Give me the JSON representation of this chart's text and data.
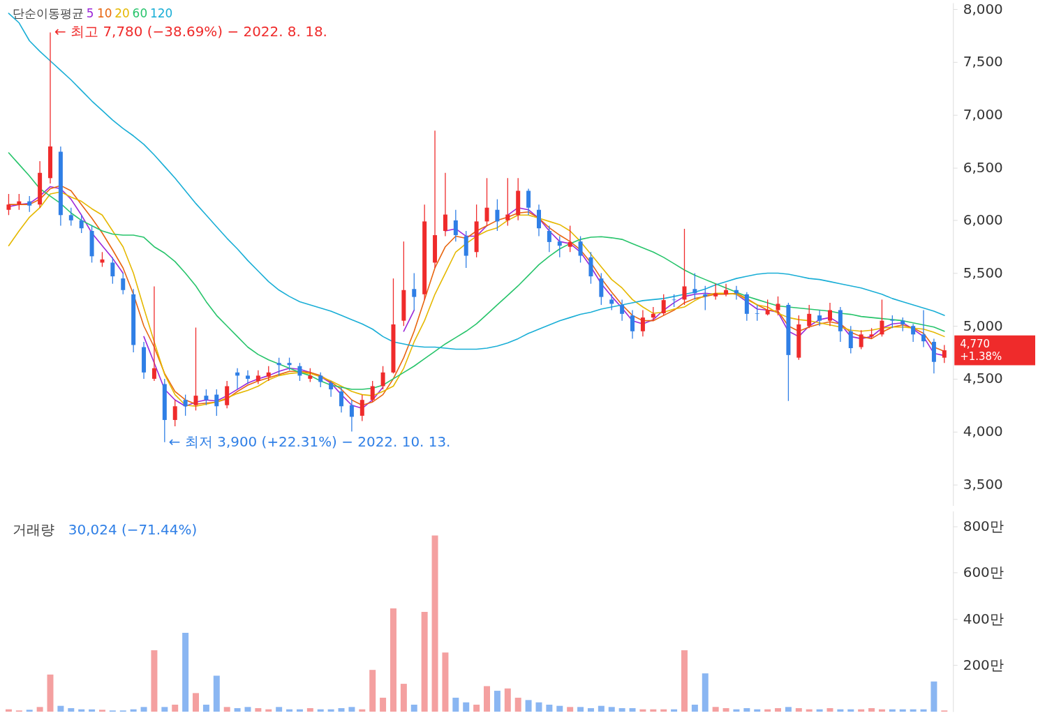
{
  "chart_data": [
    {
      "type": "candlestick",
      "legend_title": "단순이동평균",
      "legend": "top left",
      "grid": false,
      "tick_labels": "y",
      "categories": [
        null,
        null,
        null,
        null,
        null,
        null,
        null,
        null,
        null,
        null,
        null,
        null,
        null,
        null,
        null,
        null,
        null,
        null,
        null,
        null,
        null,
        null,
        null,
        null,
        null,
        null,
        null,
        null,
        null,
        null,
        null,
        null,
        null,
        null,
        null,
        null,
        null,
        null,
        null,
        null,
        null,
        null,
        null,
        null,
        null,
        null,
        null,
        null,
        null,
        null,
        null,
        null,
        null,
        null,
        null,
        null,
        null,
        null,
        null,
        null,
        null,
        null,
        null,
        null,
        null,
        null,
        null,
        null,
        null,
        null,
        null,
        null,
        null,
        null,
        null,
        null,
        null,
        null,
        null,
        null,
        null,
        null,
        null,
        null,
        null,
        null,
        null,
        null,
        null,
        null,
        null
      ],
      "ohlc": [
        [
          6100,
          6250,
          6050,
          6150
        ],
        [
          6150,
          6250,
          6100,
          6180
        ],
        [
          6180,
          6230,
          6080,
          6140
        ],
        [
          6150,
          6560,
          6120,
          6450
        ],
        [
          6400,
          7780,
          6350,
          6700
        ],
        [
          6650,
          6700,
          5950,
          6050
        ],
        [
          6050,
          6120,
          5950,
          6000
        ],
        [
          6000,
          6050,
          5880,
          5925
        ],
        [
          5900,
          5950,
          5600,
          5660
        ],
        [
          5600,
          5700,
          5560,
          5630
        ],
        [
          5600,
          5650,
          5400,
          5470
        ],
        [
          5450,
          5500,
          5300,
          5340
        ],
        [
          5300,
          5350,
          4750,
          4820
        ],
        [
          4800,
          4850,
          4500,
          4560
        ],
        [
          4500,
          5375,
          4480,
          4600
        ],
        [
          4450,
          4500,
          3900,
          4110
        ],
        [
          4110,
          4300,
          4050,
          4240
        ],
        [
          4300,
          4350,
          4150,
          4240
        ],
        [
          4250,
          4985,
          4200,
          4340
        ],
        [
          4340,
          4400,
          4250,
          4300
        ],
        [
          4350,
          4400,
          4150,
          4240
        ],
        [
          4250,
          4480,
          4220,
          4430
        ],
        [
          4560,
          4600,
          4400,
          4530
        ],
        [
          4530,
          4580,
          4450,
          4500
        ],
        [
          4480,
          4580,
          4450,
          4530
        ],
        [
          4520,
          4620,
          4480,
          4560
        ],
        [
          4650,
          4700,
          4530,
          4630
        ],
        [
          4650,
          4700,
          4580,
          4630
        ],
        [
          4620,
          4650,
          4480,
          4530
        ],
        [
          4500,
          4600,
          4470,
          4530
        ],
        [
          4530,
          4560,
          4420,
          4470
        ],
        [
          4460,
          4480,
          4330,
          4400
        ],
        [
          4380,
          4420,
          4180,
          4240
        ],
        [
          4250,
          4300,
          4000,
          4140
        ],
        [
          4150,
          4350,
          4100,
          4300
        ],
        [
          4300,
          4480,
          4280,
          4430
        ],
        [
          4430,
          4620,
          4400,
          4560
        ],
        [
          4560,
          5450,
          4550,
          5015
        ],
        [
          5050,
          5800,
          5000,
          5340
        ],
        [
          5350,
          5500,
          5150,
          5275
        ],
        [
          5300,
          6150,
          5250,
          5990
        ],
        [
          5600,
          6850,
          5550,
          5860
        ],
        [
          5900,
          6450,
          5850,
          6055
        ],
        [
          6000,
          6100,
          5800,
          5860
        ],
        [
          5850,
          5900,
          5550,
          5665
        ],
        [
          5700,
          6150,
          5650,
          5990
        ],
        [
          5990,
          6400,
          5950,
          6120
        ],
        [
          6100,
          6200,
          5900,
          5990
        ],
        [
          6000,
          6400,
          5950,
          6055
        ],
        [
          6050,
          6400,
          6000,
          6280
        ],
        [
          6280,
          6300,
          6050,
          6120
        ],
        [
          6100,
          6150,
          5850,
          5925
        ],
        [
          5900,
          5950,
          5700,
          5795
        ],
        [
          5800,
          5850,
          5650,
          5760
        ],
        [
          5750,
          5950,
          5700,
          5795
        ],
        [
          5800,
          5850,
          5600,
          5665
        ],
        [
          5650,
          5700,
          5400,
          5470
        ],
        [
          5450,
          5500,
          5200,
          5275
        ],
        [
          5250,
          5300,
          5150,
          5210
        ],
        [
          5200,
          5250,
          5050,
          5115
        ],
        [
          5100,
          5150,
          4880,
          4950
        ],
        [
          4950,
          5150,
          4900,
          5080
        ],
        [
          5080,
          5180,
          5050,
          5115
        ],
        [
          5120,
          5300,
          5100,
          5245
        ],
        [
          5250,
          5300,
          5180,
          5245
        ],
        [
          5250,
          5920,
          5200,
          5375
        ],
        [
          5350,
          5500,
          5250,
          5310
        ],
        [
          5300,
          5380,
          5150,
          5280
        ],
        [
          5280,
          5400,
          5250,
          5310
        ],
        [
          5300,
          5400,
          5280,
          5340
        ],
        [
          5340,
          5380,
          5250,
          5310
        ],
        [
          5300,
          5320,
          5050,
          5115
        ],
        [
          5120,
          5200,
          5050,
          5115
        ],
        [
          5110,
          5250,
          5100,
          5150
        ],
        [
          5150,
          5280,
          5100,
          5210
        ],
        [
          5200,
          5220,
          4290,
          4725
        ],
        [
          4700,
          5100,
          4680,
          5015
        ],
        [
          5000,
          5200,
          4980,
          5115
        ],
        [
          5100,
          5150,
          5000,
          5050
        ],
        [
          5050,
          5220,
          5000,
          5150
        ],
        [
          5150,
          5180,
          4850,
          4950
        ],
        [
          4950,
          5000,
          4740,
          4790
        ],
        [
          4800,
          4960,
          4780,
          4920
        ],
        [
          4900,
          4980,
          4880,
          4920
        ],
        [
          4920,
          5250,
          4900,
          5050
        ],
        [
          5060,
          5100,
          4980,
          5050
        ],
        [
          5050,
          5080,
          4950,
          5015
        ],
        [
          5000,
          5020,
          4850,
          4920
        ],
        [
          4920,
          5150,
          4800,
          4855
        ],
        [
          4850,
          4880,
          4550,
          4660
        ],
        [
          4700,
          4820,
          4650,
          4770
        ]
      ],
      "colors": [
        "#ef2b2b",
        "#ef2b2b",
        "#2f7fe6",
        "#ef2b2b",
        "#ef2b2b",
        "#2f7fe6",
        "#2f7fe6",
        "#2f7fe6",
        "#2f7fe6",
        "#ef2b2b",
        "#2f7fe6",
        "#2f7fe6",
        "#2f7fe6",
        "#2f7fe6",
        "#ef2b2b",
        "#2f7fe6",
        "#ef2b2b",
        "#2f7fe6",
        "#ef2b2b",
        "#2f7fe6",
        "#2f7fe6",
        "#ef2b2b",
        "#2f7fe6",
        "#2f7fe6",
        "#ef2b2b",
        "#ef2b2b",
        "#2f7fe6",
        "#2f7fe6",
        "#2f7fe6",
        "#ef2b2b",
        "#2f7fe6",
        "#2f7fe6",
        "#2f7fe6",
        "#2f7fe6",
        "#ef2b2b",
        "#ef2b2b",
        "#ef2b2b",
        "#ef2b2b",
        "#ef2b2b",
        "#2f7fe6",
        "#ef2b2b",
        "#ef2b2b",
        "#ef2b2b",
        "#2f7fe6",
        "#2f7fe6",
        "#ef2b2b",
        "#ef2b2b",
        "#2f7fe6",
        "#ef2b2b",
        "#ef2b2b",
        "#2f7fe6",
        "#2f7fe6",
        "#2f7fe6",
        "#2f7fe6",
        "#ef2b2b",
        "#2f7fe6",
        "#2f7fe6",
        "#2f7fe6",
        "#2f7fe6",
        "#2f7fe6",
        "#2f7fe6",
        "#ef2b2b",
        "#ef2b2b",
        "#ef2b2b",
        "#2f7fe6",
        "#ef2b2b",
        "#2f7fe6",
        "#2f7fe6",
        "#ef2b2b",
        "#ef2b2b",
        "#2f7fe6",
        "#2f7fe6",
        "#2f7fe6",
        "#ef2b2b",
        "#ef2b2b",
        "#2f7fe6",
        "#ef2b2b",
        "#ef2b2b",
        "#2f7fe6",
        "#ef2b2b",
        "#2f7fe6",
        "#2f7fe6",
        "#ef2b2b",
        "#ef2b2b",
        "#ef2b2b",
        "#2f7fe6",
        "#2f7fe6",
        "#2f7fe6",
        "#2f7fe6",
        "#2f7fe6",
        "#ef2b2b"
      ],
      "series": [
        {
          "name": "5",
          "type": "line",
          "color": "#9b27d9",
          "values": [
            6130,
            6150,
            6160,
            6230,
            6320,
            6300,
            6200,
            6050,
            5880,
            5760,
            5640,
            5500,
            null,
            4900,
            4650,
            4400,
            4300,
            4240,
            4280,
            4300,
            4290,
            4340,
            4400,
            4460,
            4500,
            4530,
            4570,
            4600,
            4590,
            4560,
            4520,
            4460,
            4350,
            4250,
            4220,
            4300,
            4420,
            null,
            4950,
            5150,
            null,
            null,
            5900,
            5920,
            5850,
            5850,
            5950,
            null,
            6050,
            6120,
            6100,
            6020,
            5900,
            5800,
            5780,
            5700,
            5560,
            5400,
            5280,
            5170,
            5050,
            5020,
            5060,
            5150,
            5220,
            5280,
            5300,
            5310,
            5300,
            5310,
            5300,
            5230,
            5160,
            5150,
            5130,
            4950,
            4900,
            5000,
            5060,
            5080,
            5020,
            4900,
            4880,
            4900,
            4980,
            5020,
            5030,
            4970,
            4900,
            4740,
            4720
          ]
        },
        {
          "name": "10",
          "type": "line",
          "color": "#e8650f",
          "values": [
            6150,
            6150,
            6150,
            6200,
            6300,
            6330,
            6280,
            6150,
            6020,
            5880,
            5720,
            5550,
            5300,
            5000,
            4800,
            4550,
            4380,
            4300,
            4260,
            4270,
            4280,
            4310,
            4380,
            4440,
            4480,
            4510,
            4540,
            4570,
            4570,
            4560,
            4530,
            4470,
            4400,
            4300,
            4250,
            4280,
            4350,
            4500,
            4700,
            4950,
            5250,
            5550,
            5750,
            5850,
            5830,
            5900,
            5950,
            6000,
            6030,
            6070,
            6080,
            6020,
            5930,
            5860,
            5800,
            5720,
            5600,
            5450,
            5320,
            5200,
            5100,
            5050,
            5050,
            5100,
            5150,
            5220,
            5260,
            5280,
            5300,
            5300,
            5310,
            5260,
            5200,
            5150,
            5140,
            5000,
            4950,
            4990,
            5020,
            5040,
            5020,
            4940,
            4900,
            4880,
            4940,
            4990,
            5010,
            4980,
            4930,
            4800,
            4760
          ]
        },
        {
          "name": "20",
          "type": "line",
          "color": "#e5b800",
          "values": [
            5760,
            5900,
            6030,
            6120,
            6250,
            6270,
            6220,
            6180,
            6110,
            6050,
            5900,
            5750,
            5500,
            5170,
            4850,
            4540,
            4350,
            4250,
            4240,
            4260,
            4280,
            4320,
            4360,
            4390,
            4430,
            4490,
            4530,
            4550,
            4560,
            4550,
            4520,
            4480,
            4430,
            4380,
            4350,
            4340,
            4380,
            4430,
            4600,
            4850,
            5050,
            5300,
            5500,
            5700,
            5780,
            5850,
            5900,
            5930,
            6000,
            6050,
            6050,
            6020,
            5990,
            5960,
            5900,
            5800,
            5680,
            5560,
            5440,
            5360,
            5250,
            5180,
            5120,
            5130,
            5160,
            5180,
            5240,
            5290,
            5310,
            5310,
            5300,
            5250,
            5200,
            5180,
            5120,
            5080,
            5060,
            5050,
            5030,
            5010,
            4990,
            4960,
            4950,
            4960,
            4980,
            4990,
            4990,
            4980,
            4970,
            4940,
            4900
          ]
        },
        {
          "name": "60",
          "type": "line",
          "color": "#27c46b",
          "values": [
            6640,
            6530,
            6420,
            6300,
            6230,
            6160,
            6070,
            6000,
            5950,
            5900,
            5870,
            5860,
            5860,
            5840,
            5750,
            5690,
            5610,
            5500,
            5380,
            5230,
            5100,
            5000,
            4900,
            4800,
            4730,
            4680,
            4640,
            4600,
            4560,
            4530,
            4480,
            4440,
            4420,
            4400,
            4400,
            4410,
            4440,
            4500,
            4560,
            4620,
            4690,
            4760,
            4830,
            4890,
            4950,
            5020,
            5110,
            5200,
            5290,
            5380,
            5480,
            5580,
            5660,
            5730,
            5780,
            5820,
            5840,
            5845,
            5835,
            5820,
            5780,
            5740,
            5700,
            5650,
            5590,
            5530,
            5480,
            5440,
            5400,
            5360,
            5320,
            5280,
            5250,
            5220,
            5190,
            5180,
            5170,
            5160,
            5150,
            5140,
            5120,
            5110,
            5090,
            5080,
            5070,
            5060,
            5050,
            5030,
            5010,
            4990,
            4950
          ]
        },
        {
          "name": "120",
          "type": "line",
          "color": "#19aed6",
          "values": [
            7960,
            7870,
            7700,
            7600,
            7510,
            7420,
            7330,
            7230,
            7130,
            7040,
            6950,
            6870,
            6800,
            6720,
            6620,
            6510,
            6400,
            6280,
            6160,
            6050,
            5940,
            5830,
            5730,
            5620,
            5520,
            5420,
            5340,
            5280,
            5230,
            5200,
            5170,
            5140,
            5100,
            5060,
            5020,
            4970,
            4900,
            4850,
            4830,
            4810,
            4800,
            4800,
            4790,
            4780,
            4780,
            4780,
            4790,
            4810,
            4840,
            4880,
            4930,
            4970,
            5010,
            5050,
            5080,
            5110,
            5130,
            5160,
            5180,
            5200,
            5220,
            5240,
            5250,
            5260,
            5280,
            5300,
            5320,
            5350,
            5390,
            5420,
            5450,
            5470,
            5490,
            5500,
            5500,
            5490,
            5470,
            5450,
            5440,
            5420,
            5400,
            5380,
            5360,
            5330,
            5300,
            5260,
            5230,
            5200,
            5170,
            5140,
            5100
          ]
        }
      ],
      "ylim": [
        3300,
        8060
      ],
      "yticks": [
        {
          "value": 3500,
          "label": "3,500"
        },
        {
          "value": 4000,
          "label": "4,000"
        },
        {
          "value": 4500,
          "label": "4,500"
        },
        {
          "value": 5000,
          "label": "5,000"
        },
        {
          "value": 5500,
          "label": "5,500"
        },
        {
          "value": 6000,
          "label": "6,000"
        },
        {
          "value": 6500,
          "label": "6,500"
        },
        {
          "value": 7000,
          "label": "7,000"
        },
        {
          "value": 7500,
          "label": "7,500"
        },
        {
          "value": 8000,
          "label": "8,000"
        }
      ],
      "annotations": [
        "← 최고 7,780 (−38.69%) − 2022. 8. 18.",
        "← 최저 3,900 (+22.31%) − 2022. 10. 13.",
        "4,770\n+1.38%"
      ]
    },
    {
      "type": "bar",
      "title": "거래량",
      "grid": false,
      "tick_labels": "y",
      "categories": [
        null,
        null,
        null,
        null,
        null,
        null,
        null,
        null,
        null,
        null,
        null,
        null,
        null,
        null,
        null,
        null,
        null,
        null,
        null,
        null,
        null,
        null,
        null,
        null,
        null,
        null,
        null,
        null,
        null,
        null,
        null,
        null,
        null,
        null,
        null,
        null,
        null,
        null,
        null,
        null,
        null,
        null,
        null,
        null,
        null,
        null,
        null,
        null,
        null,
        null,
        null,
        null,
        null,
        null,
        null,
        null,
        null,
        null,
        null,
        null,
        null,
        null,
        null,
        null,
        null,
        null,
        null,
        null,
        null,
        null,
        null,
        null,
        null,
        null,
        null,
        null,
        null,
        null,
        null,
        null,
        null,
        null,
        null,
        null,
        null,
        null,
        null,
        null,
        null,
        null,
        null
      ],
      "values": [
        10,
        5,
        8,
        20,
        160,
        25,
        15,
        10,
        10,
        8,
        5,
        5,
        10,
        20,
        265,
        20,
        30,
        340,
        80,
        30,
        155,
        20,
        15,
        20,
        15,
        10,
        20,
        10,
        10,
        15,
        10,
        10,
        15,
        20,
        10,
        180,
        60,
        445,
        120,
        30,
        430,
        760,
        255,
        60,
        40,
        30,
        110,
        90,
        100,
        60,
        50,
        40,
        30,
        25,
        20,
        20,
        15,
        25,
        20,
        15,
        15,
        10,
        10,
        10,
        10,
        265,
        30,
        165,
        20,
        15,
        10,
        15,
        10,
        10,
        15,
        20,
        15,
        10,
        10,
        15,
        10,
        10,
        10,
        15,
        10,
        10,
        10,
        10,
        10,
        130,
        5
      ],
      "colors": [
        "#f4a0a0",
        "#f4a0a0",
        "#8ab6f2",
        "#f4a0a0",
        "#f4a0a0",
        "#8ab6f2",
        "#8ab6f2",
        "#8ab6f2",
        "#8ab6f2",
        "#f4a0a0",
        "#8ab6f2",
        "#8ab6f2",
        "#8ab6f2",
        "#8ab6f2",
        "#f4a0a0",
        "#8ab6f2",
        "#f4a0a0",
        "#8ab6f2",
        "#f4a0a0",
        "#8ab6f2",
        "#8ab6f2",
        "#f4a0a0",
        "#8ab6f2",
        "#8ab6f2",
        "#f4a0a0",
        "#f4a0a0",
        "#8ab6f2",
        "#8ab6f2",
        "#8ab6f2",
        "#f4a0a0",
        "#8ab6f2",
        "#8ab6f2",
        "#8ab6f2",
        "#8ab6f2",
        "#f4a0a0",
        "#f4a0a0",
        "#f4a0a0",
        "#f4a0a0",
        "#f4a0a0",
        "#8ab6f2",
        "#f4a0a0",
        "#f4a0a0",
        "#f4a0a0",
        "#8ab6f2",
        "#8ab6f2",
        "#f4a0a0",
        "#f4a0a0",
        "#8ab6f2",
        "#f4a0a0",
        "#f4a0a0",
        "#8ab6f2",
        "#8ab6f2",
        "#8ab6f2",
        "#8ab6f2",
        "#f4a0a0",
        "#8ab6f2",
        "#8ab6f2",
        "#8ab6f2",
        "#8ab6f2",
        "#8ab6f2",
        "#8ab6f2",
        "#f4a0a0",
        "#f4a0a0",
        "#f4a0a0",
        "#8ab6f2",
        "#f4a0a0",
        "#8ab6f2",
        "#8ab6f2",
        "#f4a0a0",
        "#f4a0a0",
        "#8ab6f2",
        "#8ab6f2",
        "#8ab6f2",
        "#f4a0a0",
        "#f4a0a0",
        "#8ab6f2",
        "#f4a0a0",
        "#f4a0a0",
        "#8ab6f2",
        "#f4a0a0",
        "#8ab6f2",
        "#8ab6f2",
        "#f4a0a0",
        "#f4a0a0",
        "#f4a0a0",
        "#8ab6f2",
        "#8ab6f2",
        "#8ab6f2",
        "#8ab6f2",
        "#8ab6f2",
        "#f4a0a0"
      ],
      "ylim": [
        0,
        865
      ],
      "yticks": [
        {
          "value": 200,
          "label": "200만"
        },
        {
          "value": 400,
          "label": "400만"
        },
        {
          "value": 600,
          "label": "600만"
        },
        {
          "value": 800,
          "label": "800만"
        }
      ],
      "annotations": [
        "30,024 (−71.44%)"
      ]
    }
  ]
}
